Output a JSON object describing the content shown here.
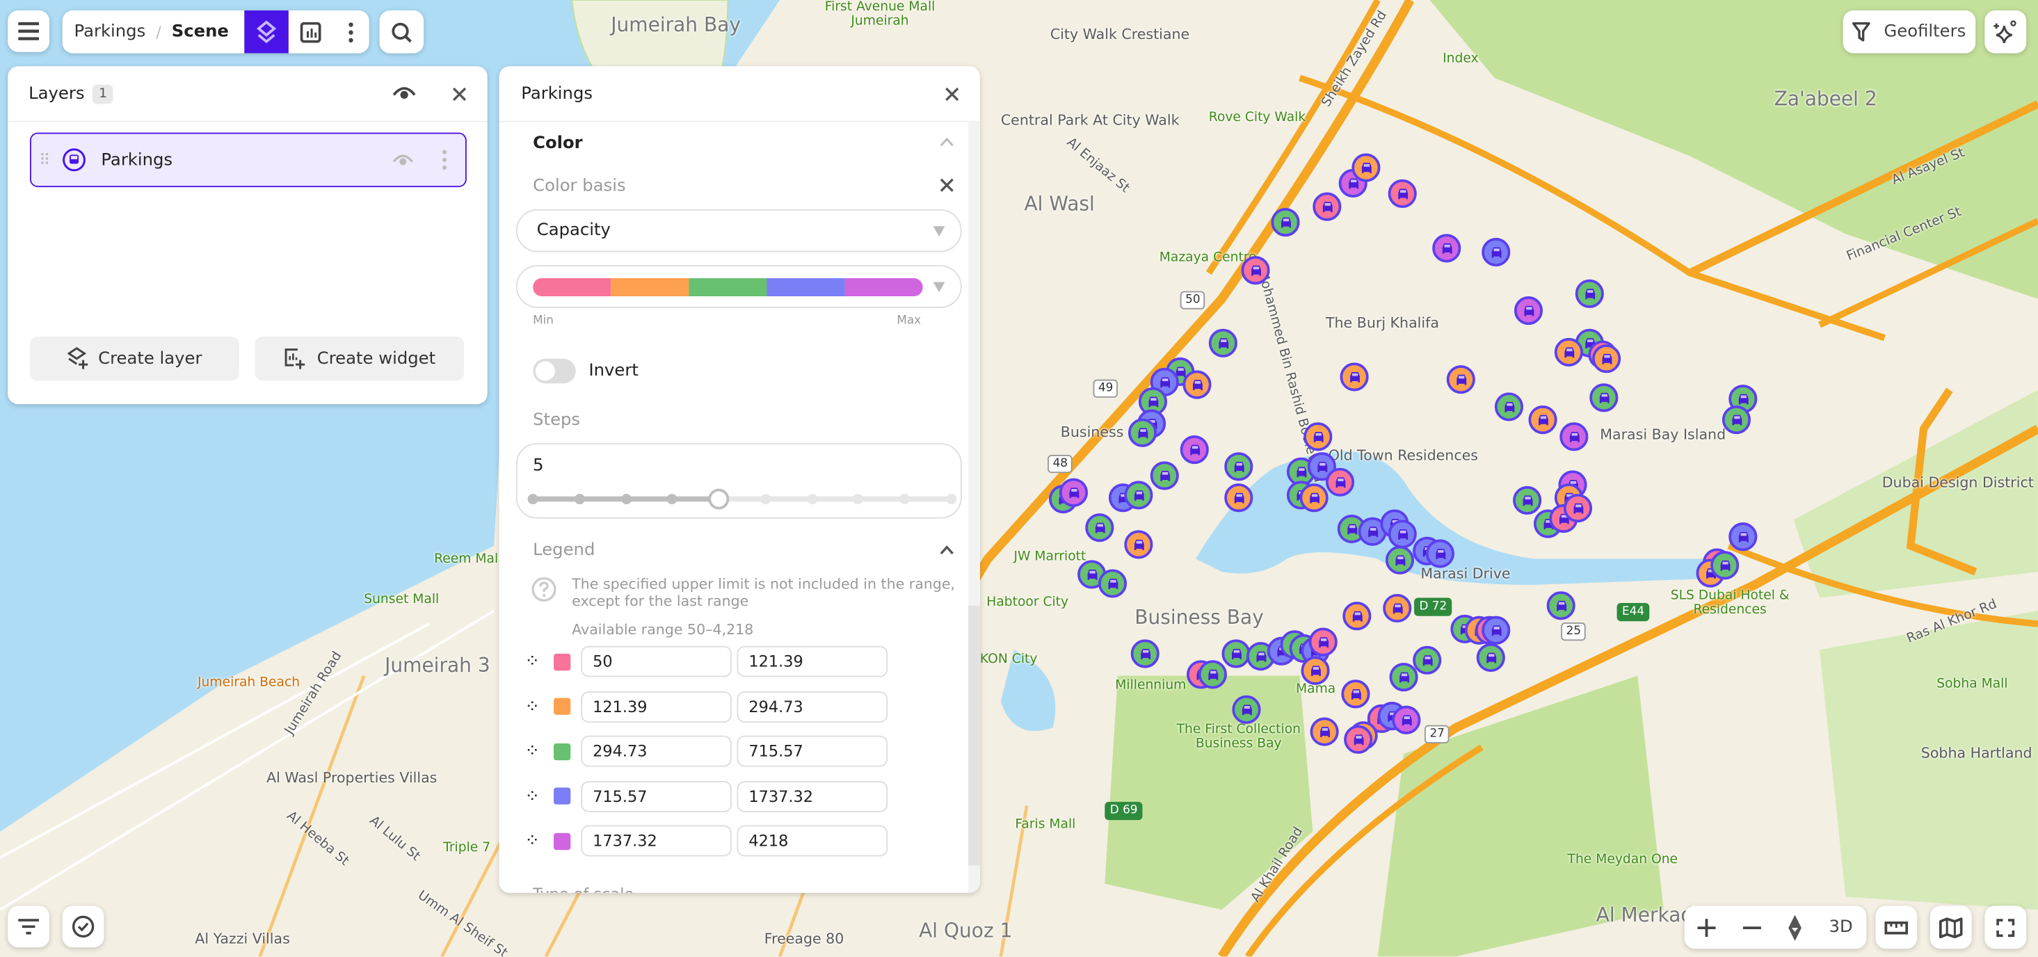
{
  "topbar": {
    "breadcrumb_parent": "Parkings",
    "breadcrumb_sep": "/",
    "breadcrumb_current": "Scene"
  },
  "topright": {
    "geofilters_label": "Geofilters"
  },
  "layers_panel": {
    "title": "Layers",
    "count": "1",
    "items": [
      {
        "label": "Parkings"
      }
    ],
    "create_layer": "Create layer",
    "create_widget": "Create widget"
  },
  "settings_panel": {
    "title": "Parkings",
    "color_section": "Color",
    "color_basis_label": "Color basis",
    "color_basis_value": "Capacity",
    "palette": [
      "#f7739a",
      "#fda050",
      "#67c171",
      "#7b7ff5",
      "#d065e0"
    ],
    "min_label": "Min",
    "max_label": "Max",
    "invert_label": "Invert",
    "invert_on": false,
    "steps_label": "Steps",
    "steps_value": "5",
    "steps_max": 10,
    "legend_section": "Legend",
    "legend_hint": "The specified upper limit is not included in the range, except for the last range",
    "available_range": "Available range 50–4,218",
    "ranges": [
      {
        "from": "50",
        "to": "121.39"
      },
      {
        "from": "121.39",
        "to": "294.73"
      },
      {
        "from": "294.73",
        "to": "715.57"
      },
      {
        "from": "715.57",
        "to": "1737.32"
      },
      {
        "from": "1737.32",
        "to": "4218"
      }
    ],
    "next_section": "Type of scale"
  },
  "map_controls": {
    "three_d": "3D"
  },
  "map_labels": [
    "Jumeirah Bay",
    "First Avenue Mall Jumeirah",
    "City Walk Crestiane",
    "Central Park At City Walk",
    "Rove City Walk",
    "Index",
    "Za'abeel 2",
    "Al Wasl",
    "Mazaya Centre",
    "The Burj Khalifa",
    "Mohammed Bin Rashid Boulevard",
    "Old Town Residences",
    "Business Bay",
    "Dubai Design District",
    "JW Marriott",
    "Habtoor City",
    "Business Bay",
    "Millennium",
    "The First Collection Business Bay",
    "Faris Mall",
    "Sunset Mall",
    "Jumeirah Beach",
    "Jumeirah 3",
    "Al Wasl Properties Villas",
    "Triple 7",
    "Al Yazzi Villas",
    "Al Quoz 1",
    "Freeage 80",
    "Al Merkad",
    "The Meydan One",
    "Sobha Mall",
    "Sobha Hartland",
    "SLS Dubai Hotel & Residences",
    "Ras Al Khor Rd",
    "Financial Center St",
    "Al Asayel St",
    "Reem Mall",
    "Jumeirah Road",
    "Sheikh Zayed Rd",
    "Al Khail Road",
    "Marasi Drive",
    "Marasi Bay Island",
    "KON City",
    "Mama",
    "Umm Al Sheif St",
    "Al Heeba St",
    "Al Lulu St",
    "Al Enjaaz St"
  ],
  "road_shields": [
    "50",
    "49",
    "48",
    "D 72",
    "25",
    "27",
    "E44",
    "D 69"
  ]
}
